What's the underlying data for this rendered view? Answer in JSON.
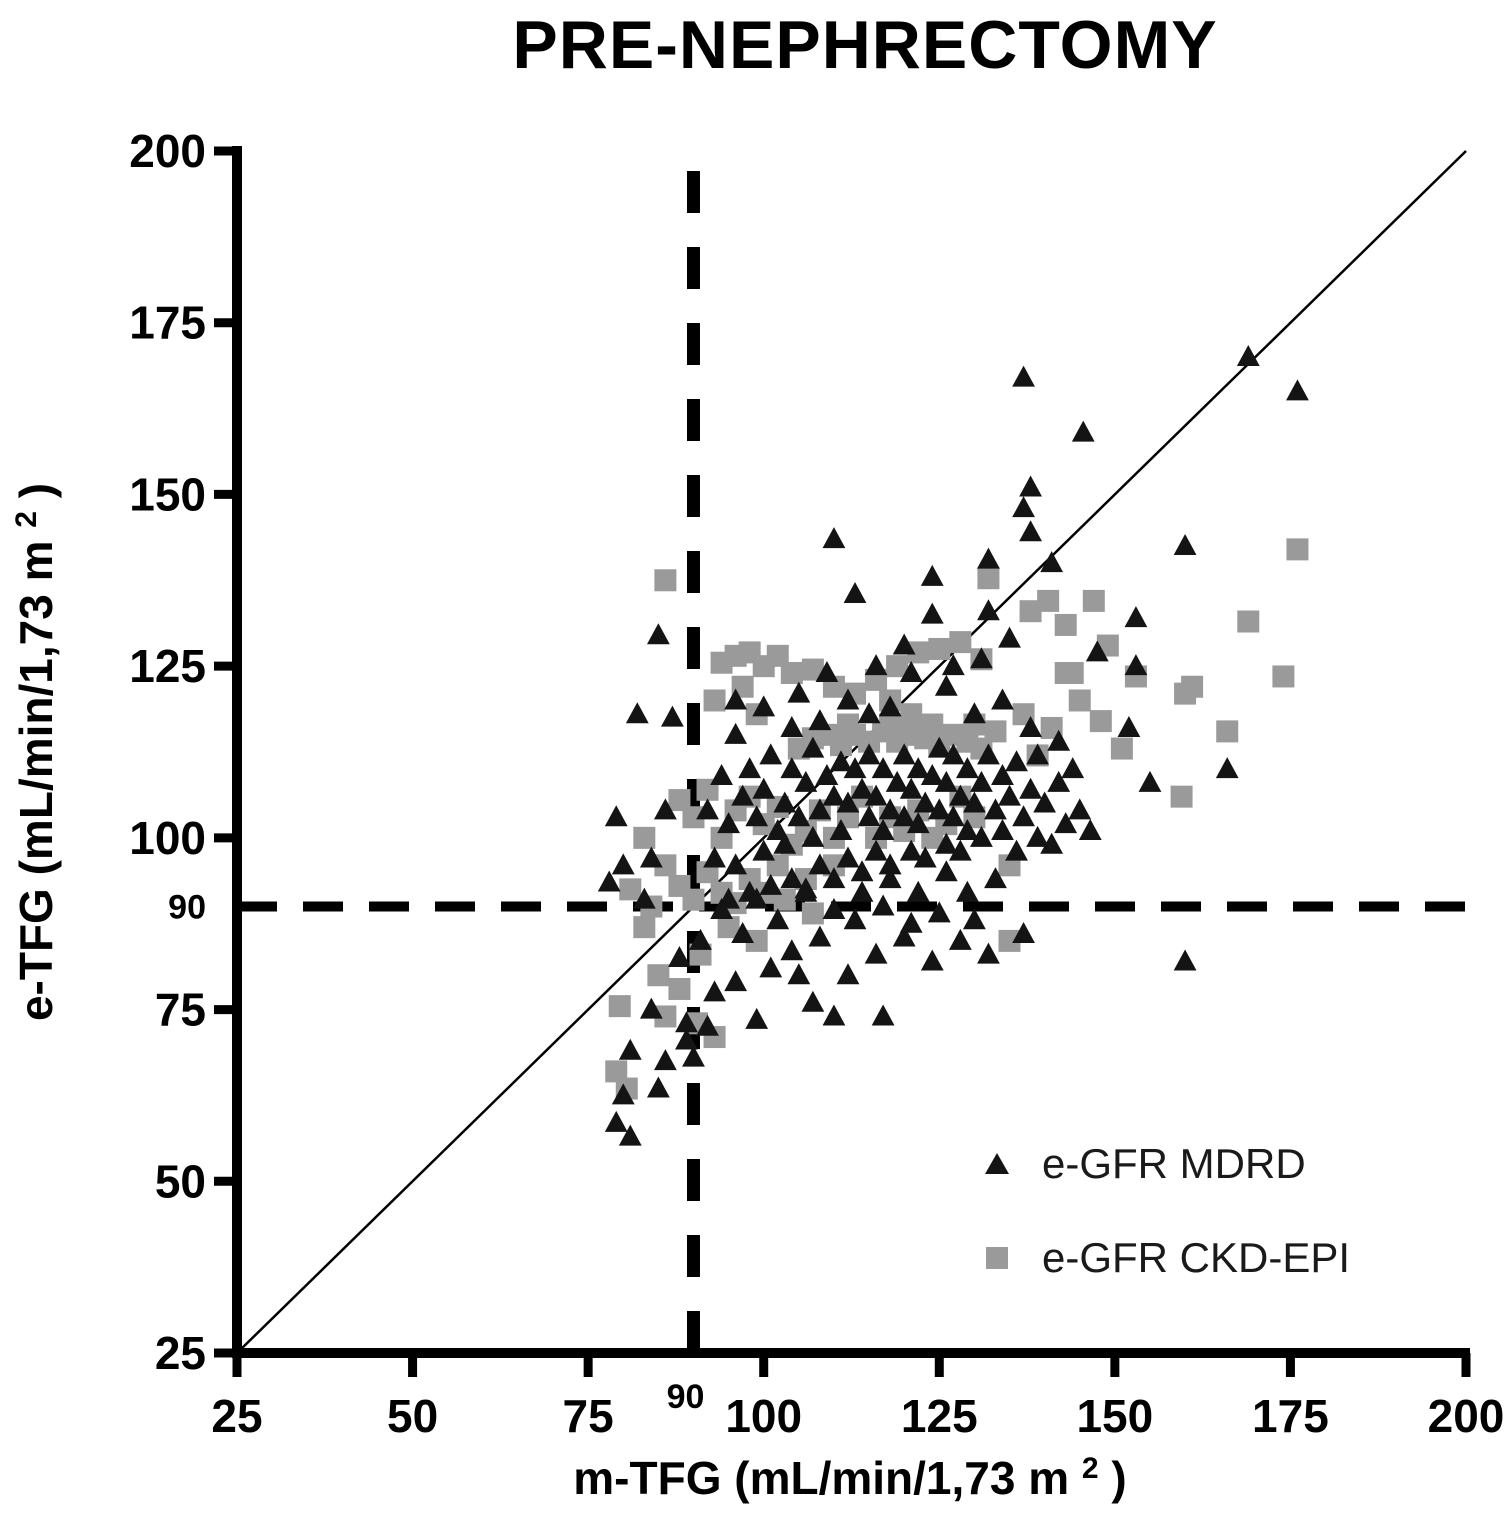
{
  "chart_data": {
    "type": "scatter",
    "title": "PRE-NEPHRECTOMY",
    "xlabel": "m-TFG (mL/min/1,73 m²)",
    "ylabel": "e-TFG (mL/min/1,73 m²)",
    "xlabel_parts": {
      "prefix": "m-TFG (mL/min/1,73 m",
      "sup": "2",
      "suffix": ")"
    },
    "ylabel_parts": {
      "prefix": "e-TFG (mL/min/1,73 m",
      "sup": "2",
      "suffix": ")"
    },
    "xlim": [
      25,
      200
    ],
    "ylim": [
      25,
      200
    ],
    "xticks": [
      25,
      50,
      75,
      100,
      125,
      150,
      175,
      200
    ],
    "yticks": [
      25,
      50,
      75,
      100,
      125,
      150,
      175,
      200
    ],
    "extra_xtick": 90,
    "extra_ytick": 90,
    "grid": false,
    "reference_lines": {
      "identity_diagonal": true,
      "dashed_vertical_x": 90,
      "dashed_horizontal_y": 90
    },
    "legend_position": "lower-right-inside",
    "colors": {
      "mdrd": "#141414",
      "ckdepi": "#9a9a9a",
      "axis": "#000000"
    },
    "legend": [
      {
        "label": "e-GFR MDRD",
        "marker": "triangle",
        "color": "#141414"
      },
      {
        "label": "e-GFR CKD-EPI",
        "marker": "square",
        "color": "#9a9a9a"
      }
    ],
    "series": [
      {
        "name": "e-GFR MDRD",
        "marker": "triangle",
        "color": "#141414",
        "points": [
          [
            137,
            167
          ],
          [
            145.5,
            159
          ],
          [
            169,
            170
          ],
          [
            176,
            165
          ],
          [
            110,
            143.5
          ],
          [
            160,
            142.5
          ],
          [
            138,
            151
          ],
          [
            137,
            148
          ],
          [
            138,
            144.5
          ],
          [
            132,
            140.5
          ],
          [
            141,
            140
          ],
          [
            124,
            138
          ],
          [
            113,
            135.5
          ],
          [
            124,
            132.5
          ],
          [
            132,
            133
          ],
          [
            85,
            129.5
          ],
          [
            153,
            132
          ],
          [
            147.5,
            127
          ],
          [
            153,
            125
          ],
          [
            166,
            110
          ],
          [
            146.5,
            101
          ],
          [
            160,
            82
          ],
          [
            152,
            116
          ],
          [
            155,
            108
          ],
          [
            82,
            118
          ],
          [
            79,
            103
          ],
          [
            78,
            93.5
          ],
          [
            80,
            96
          ],
          [
            87,
            117.5
          ],
          [
            86,
            104
          ],
          [
            84,
            97
          ],
          [
            83,
            91
          ],
          [
            92,
            104
          ],
          [
            93,
            97
          ],
          [
            94,
            109
          ],
          [
            95,
            102
          ],
          [
            95,
            91
          ],
          [
            96,
            96
          ],
          [
            96,
            115
          ],
          [
            97,
            106
          ],
          [
            98,
            92
          ],
          [
            98,
            110
          ],
          [
            99,
            103
          ],
          [
            100,
            98
          ],
          [
            100,
            107
          ],
          [
            101,
            93
          ],
          [
            101,
            112
          ],
          [
            102,
            101
          ],
          [
            103,
            105
          ],
          [
            103,
            99
          ],
          [
            104,
            110
          ],
          [
            104,
            94
          ],
          [
            105,
            103
          ],
          [
            106,
            108
          ],
          [
            106,
            92
          ],
          [
            107,
            100
          ],
          [
            107,
            113
          ],
          [
            108,
            96
          ],
          [
            108,
            104
          ],
          [
            109,
            109
          ],
          [
            110,
            94
          ],
          [
            110,
            106
          ],
          [
            111,
            101
          ],
          [
            111,
            111
          ],
          [
            112,
            97
          ],
          [
            112,
            105
          ],
          [
            113,
            110
          ],
          [
            114,
            95
          ],
          [
            114,
            107
          ],
          [
            115,
            103
          ],
          [
            115,
            112
          ],
          [
            116,
            98
          ],
          [
            116,
            106
          ],
          [
            117,
            101
          ],
          [
            117,
            110
          ],
          [
            118,
            96
          ],
          [
            118,
            104
          ],
          [
            119,
            108
          ],
          [
            120,
            103
          ],
          [
            120,
            112
          ],
          [
            121,
            98
          ],
          [
            121,
            107
          ],
          [
            122,
            102
          ],
          [
            122,
            110
          ],
          [
            123,
            97
          ],
          [
            123,
            105
          ],
          [
            124,
            109
          ],
          [
            125,
            104
          ],
          [
            125,
            113
          ],
          [
            126,
            99
          ],
          [
            126,
            108
          ],
          [
            127,
            103
          ],
          [
            127,
            112
          ],
          [
            128,
            98
          ],
          [
            128,
            106
          ],
          [
            129,
            101
          ],
          [
            129,
            110
          ],
          [
            130,
            105
          ],
          [
            131,
            108
          ],
          [
            131,
            100
          ],
          [
            132,
            112
          ],
          [
            133,
            104
          ],
          [
            134,
            109
          ],
          [
            134,
            101
          ],
          [
            135,
            106
          ],
          [
            136,
            98
          ],
          [
            136,
            111
          ],
          [
            137,
            103
          ],
          [
            138,
            107
          ],
          [
            139,
            100
          ],
          [
            139,
            112
          ],
          [
            140,
            105
          ],
          [
            141,
            99
          ],
          [
            142,
            108
          ],
          [
            143,
            102
          ],
          [
            144,
            110
          ],
          [
            145,
            104
          ],
          [
            126,
            122
          ],
          [
            118,
            119
          ],
          [
            112,
            120
          ],
          [
            108,
            117
          ],
          [
            104,
            116
          ],
          [
            100,
            119
          ],
          [
            96,
            120
          ],
          [
            130,
            118
          ],
          [
            134,
            120
          ],
          [
            138,
            116
          ],
          [
            142,
            114
          ],
          [
            121,
            124
          ],
          [
            109,
            124
          ],
          [
            115,
            118
          ],
          [
            105,
            121
          ],
          [
            131,
            126
          ],
          [
            127,
            125
          ],
          [
            135,
            129
          ],
          [
            120,
            128
          ],
          [
            116,
            125
          ],
          [
            79,
            58.5
          ],
          [
            81,
            56.5
          ],
          [
            80,
            62.5
          ],
          [
            85,
            63.5
          ],
          [
            86,
            67.5
          ],
          [
            90,
            68
          ],
          [
            81,
            69
          ],
          [
            89,
            70.5
          ],
          [
            92,
            72.5
          ],
          [
            99,
            73.5
          ],
          [
            107,
            76
          ],
          [
            110,
            74
          ],
          [
            117,
            74
          ],
          [
            89,
            73
          ],
          [
            84,
            75
          ],
          [
            93,
            77.5
          ],
          [
            96,
            79
          ],
          [
            101,
            81
          ],
          [
            104,
            83.5
          ],
          [
            108,
            85.5
          ],
          [
            112,
            80
          ],
          [
            116,
            83
          ],
          [
            120,
            85.5
          ],
          [
            124,
            82
          ],
          [
            128,
            85
          ],
          [
            132,
            83
          ],
          [
            137,
            86
          ],
          [
            113,
            88
          ],
          [
            117,
            90
          ],
          [
            121,
            87.5
          ],
          [
            125,
            89
          ],
          [
            129,
            92
          ],
          [
            133,
            94
          ],
          [
            105,
            80
          ],
          [
            97,
            86
          ],
          [
            94,
            89.5
          ],
          [
            91,
            85
          ],
          [
            88,
            82.5
          ],
          [
            99,
            91
          ],
          [
            102,
            88
          ],
          [
            106,
            92.5
          ],
          [
            110,
            89.5
          ],
          [
            114,
            92
          ],
          [
            118,
            94
          ],
          [
            122,
            92
          ],
          [
            126,
            95
          ],
          [
            130,
            88
          ]
        ]
      },
      {
        "name": "e-GFR CKD-EPI",
        "marker": "square",
        "color": "#9a9a9a",
        "points": [
          [
            86,
            137.5
          ],
          [
            132,
            137.8
          ],
          [
            140.5,
            134.5
          ],
          [
            147,
            134.5
          ],
          [
            176,
            142
          ],
          [
            169,
            131.5
          ],
          [
            174,
            123.5
          ],
          [
            161,
            122
          ],
          [
            166,
            115.5
          ],
          [
            160,
            121
          ],
          [
            159.5,
            106
          ],
          [
            153,
            123.5
          ],
          [
            135,
            85
          ],
          [
            149,
            128
          ],
          [
            143,
            131
          ],
          [
            138,
            133
          ],
          [
            144,
            124
          ],
          [
            148,
            117
          ],
          [
            151,
            113
          ],
          [
            94,
            125.5
          ],
          [
            96,
            126.5
          ],
          [
            98,
            127
          ],
          [
            100,
            125
          ],
          [
            102,
            126.5
          ],
          [
            104,
            124
          ],
          [
            107,
            124.5
          ],
          [
            97,
            122
          ],
          [
            93,
            120
          ],
          [
            99,
            118
          ],
          [
            110,
            122
          ],
          [
            113,
            121
          ],
          [
            116,
            123
          ],
          [
            119,
            125
          ],
          [
            122,
            127
          ],
          [
            125,
            127.5
          ],
          [
            128,
            128.5
          ],
          [
            131,
            126
          ],
          [
            118,
            120
          ],
          [
            121,
            118
          ],
          [
            105,
            113
          ],
          [
            107,
            114.5
          ],
          [
            109,
            115
          ],
          [
            111,
            113.5
          ],
          [
            113,
            115
          ],
          [
            115,
            114
          ],
          [
            117,
            115.5
          ],
          [
            119,
            114
          ],
          [
            121,
            115
          ],
          [
            123,
            114.5
          ],
          [
            125,
            113.5
          ],
          [
            127,
            115
          ],
          [
            129,
            114
          ],
          [
            131,
            113
          ],
          [
            133,
            115.5
          ],
          [
            112,
            116.5
          ],
          [
            118,
            116.5
          ],
          [
            124,
            116.5
          ],
          [
            130,
            116.5
          ],
          [
            88,
            105.5
          ],
          [
            90,
            103
          ],
          [
            92,
            107
          ],
          [
            94,
            100
          ],
          [
            96,
            104
          ],
          [
            98,
            106
          ],
          [
            100,
            102
          ],
          [
            102,
            104.5
          ],
          [
            104,
            99
          ],
          [
            106,
            101
          ],
          [
            108,
            104
          ],
          [
            110,
            100
          ],
          [
            112,
            103
          ],
          [
            114,
            106
          ],
          [
            116,
            100
          ],
          [
            118,
            103
          ],
          [
            120,
            101
          ],
          [
            122,
            104
          ],
          [
            124,
            100
          ],
          [
            126,
            102
          ],
          [
            128,
            106
          ],
          [
            130,
            103
          ],
          [
            135,
            96
          ],
          [
            137,
            118
          ],
          [
            139,
            112
          ],
          [
            141,
            116
          ],
          [
            143,
            124
          ],
          [
            145,
            120
          ],
          [
            86,
            96
          ],
          [
            88,
            93
          ],
          [
            90,
            91
          ],
          [
            92,
            95
          ],
          [
            94,
            92
          ],
          [
            96,
            90.5
          ],
          [
            98,
            94
          ],
          [
            100,
            92
          ],
          [
            102,
            96
          ],
          [
            106,
            94
          ],
          [
            110,
            96
          ],
          [
            83,
            100
          ],
          [
            81,
            92.5
          ],
          [
            84,
            90
          ],
          [
            79.5,
            75.5
          ],
          [
            86,
            74
          ],
          [
            90.5,
            73
          ],
          [
            79,
            66
          ],
          [
            80.5,
            63.5
          ],
          [
            83,
            87
          ],
          [
            85,
            80
          ],
          [
            88,
            78
          ],
          [
            91,
            83
          ],
          [
            95,
            87
          ],
          [
            99,
            85
          ],
          [
            93,
            71
          ],
          [
            103,
            91
          ],
          [
            107,
            89
          ]
        ]
      }
    ]
  }
}
